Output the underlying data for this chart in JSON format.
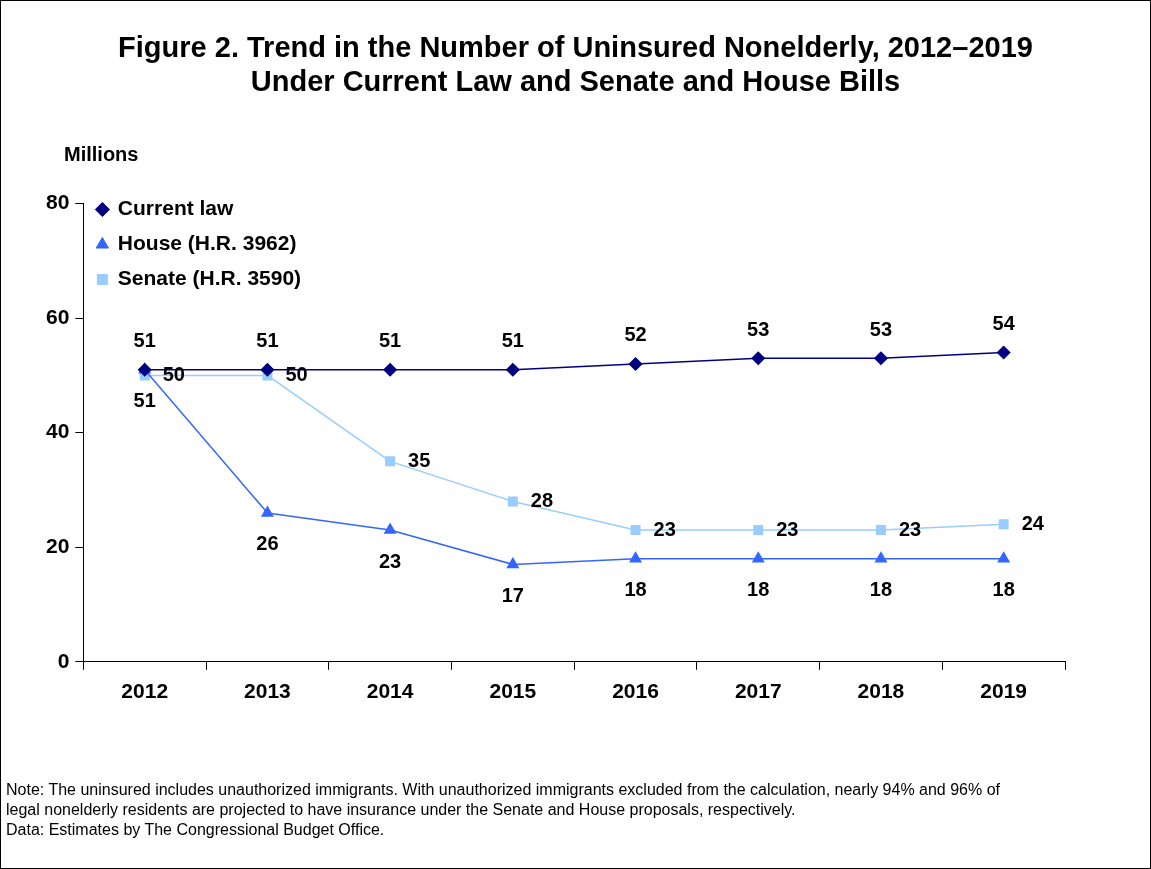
{
  "chart_data": {
    "type": "line",
    "title": "Figure 2. Trend in the Number of Uninsured Nonelderly, 2012–2019\nUnder Current Law and Senate and House Bills",
    "ylabel": "Millions",
    "categories": [
      "2012",
      "2013",
      "2014",
      "2015",
      "2016",
      "2017",
      "2018",
      "2019"
    ],
    "series": [
      {
        "name": "Current law",
        "color": "#000080",
        "marker": "diamond",
        "values": [
          51,
          51,
          51,
          51,
          52,
          53,
          53,
          54
        ]
      },
      {
        "name": "House (H.R. 3962)",
        "color": "#3366ff",
        "marker": "triangle",
        "values": [
          51,
          26,
          23,
          17,
          18,
          18,
          18,
          18
        ]
      },
      {
        "name": "Senate (H.R. 3590)",
        "color": "#99ccff",
        "marker": "square",
        "values": [
          50,
          50,
          35,
          28,
          23,
          23,
          23,
          24
        ]
      }
    ],
    "ylim": [
      0,
      80
    ],
    "yticks": [
      0,
      20,
      40,
      60,
      80
    ],
    "grid": false,
    "legend": "top left",
    "data_labels": true,
    "line_style": "solid",
    "annotations": [
      "Note: The uninsured includes unauthorized immigrants. With unauthorized immigrants excluded from the calculation, nearly 94% and 96% of legal nonelderly residents are projected to have insurance under the Senate and House proposals, respectively.",
      "Data: Estimates by The Congressional Budget Office."
    ]
  }
}
